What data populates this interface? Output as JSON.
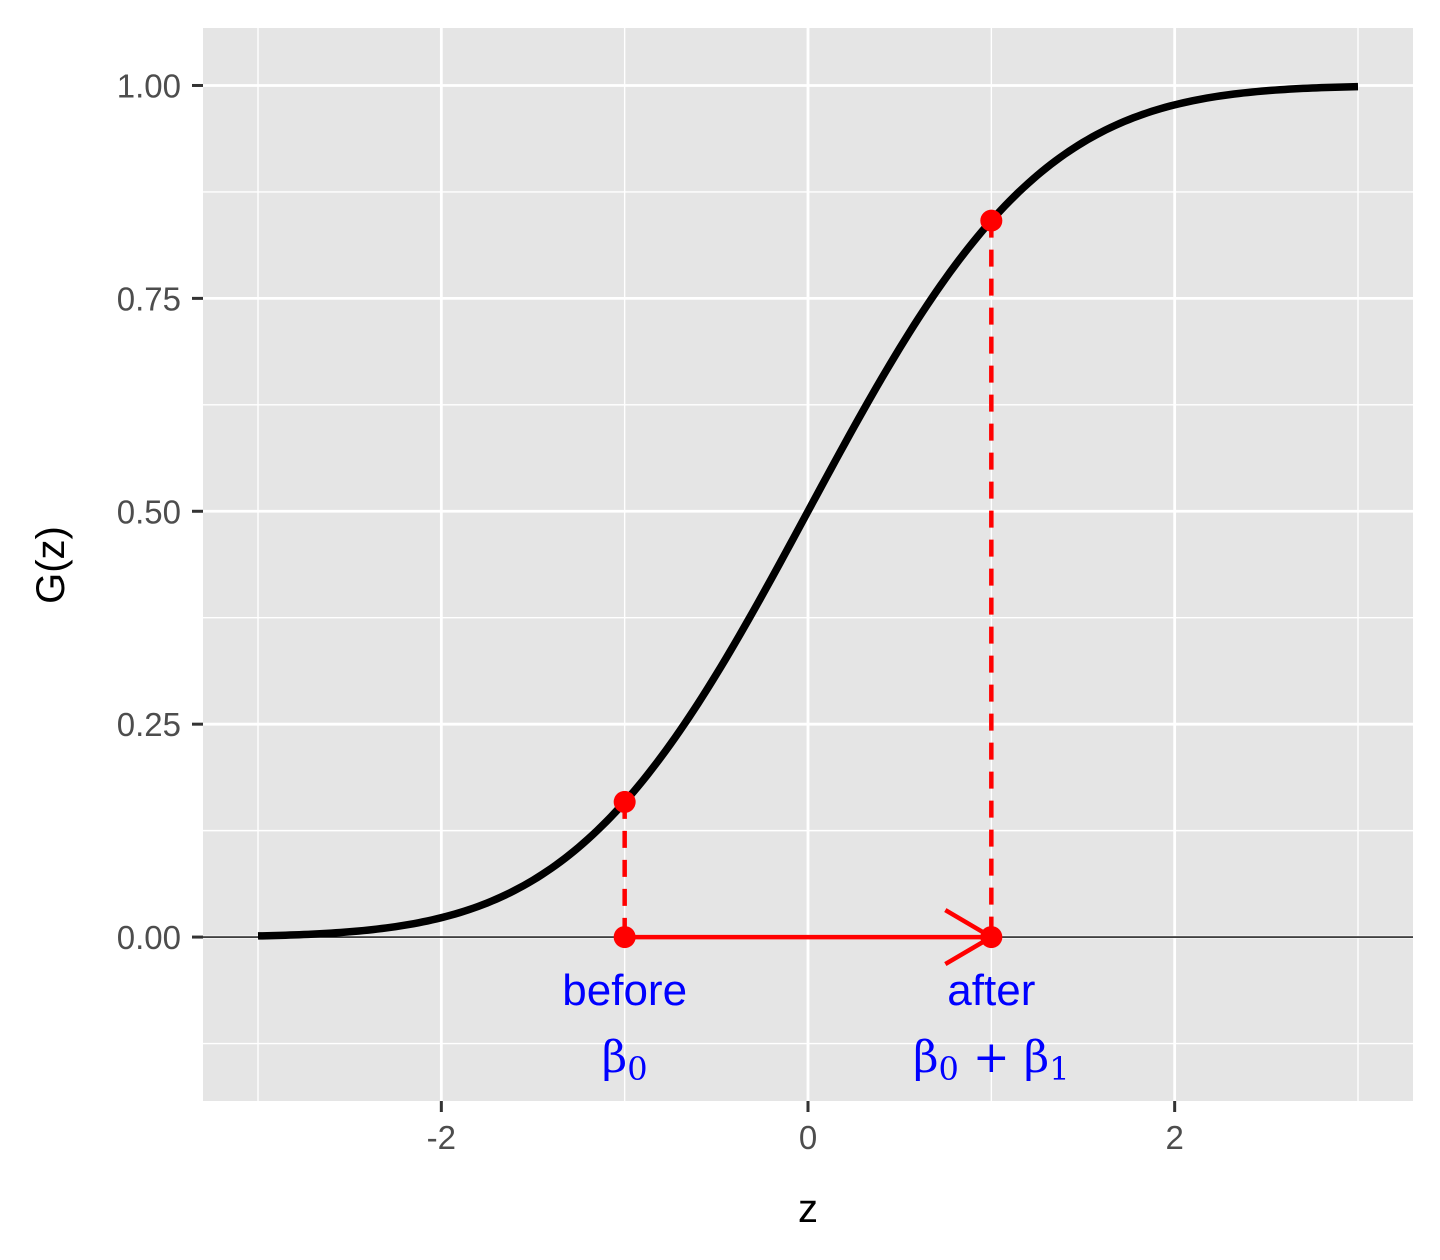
{
  "chart_data": {
    "type": "line",
    "xlabel": "z",
    "ylabel": "G(z)",
    "xlim": [
      -3,
      3
    ],
    "ylim": [
      -0.15,
      1.0
    ],
    "x_ticks": [
      -2,
      0,
      2
    ],
    "x_tick_labels": [
      "-2",
      "0",
      "2"
    ],
    "y_ticks": [
      0,
      0.25,
      0.5,
      0.75,
      1.0
    ],
    "y_tick_labels": [
      "0.00",
      "0.25",
      "0.50",
      "0.75",
      "1.00"
    ],
    "grid": true,
    "series": [
      {
        "function": "standard normal CDF",
        "x_range": [
          -3,
          3
        ],
        "color": "#000000"
      }
    ],
    "points": [
      {
        "x": -1,
        "y": 0.1587
      },
      {
        "x": 1,
        "y": 0.8413
      },
      {
        "x": -1,
        "y": 0
      },
      {
        "x": 1,
        "y": 0
      }
    ],
    "arrow": {
      "from_x": -1,
      "to_x": 1,
      "y": 0,
      "color": "#ff0000"
    },
    "annotations": [
      {
        "x": -1,
        "label": "before",
        "symbol": "β",
        "subscript": "0"
      },
      {
        "x": 1,
        "label": "after",
        "symbol": "β",
        "subscript": "0",
        "op": "+",
        "symbol2": "β",
        "subscript2": "1"
      }
    ],
    "colors": {
      "panel_background": "#e5e5e5",
      "grid": "#ffffff",
      "curve": "#000000",
      "markers": "#ff0000",
      "annotation_text": "#0000ff"
    }
  }
}
